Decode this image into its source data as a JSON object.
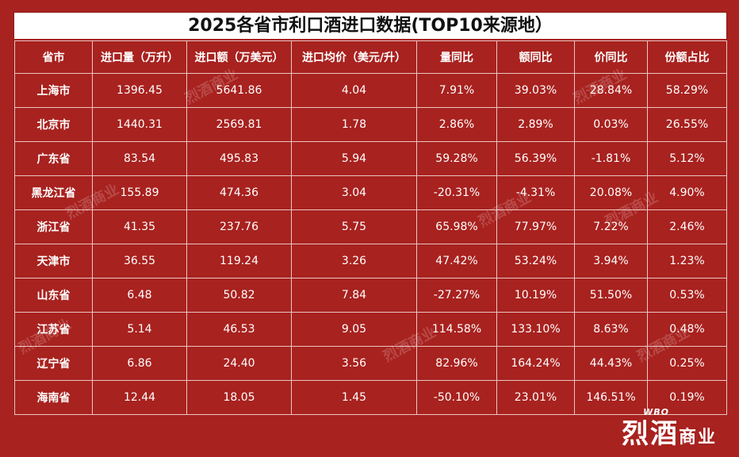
{
  "title": "2025各省市利口酒进口数据(TOP10来源地）",
  "headers": [
    "省市",
    "进口量（万升）",
    "进口额（万美元）",
    "进口均价（美元/升）",
    "量同比",
    "额同比",
    "价同比",
    "份额占比"
  ],
  "rows": [
    [
      "上海市",
      "1396.45",
      "5641.86",
      "4.04",
      "7.91%",
      "39.03%",
      "28.84%",
      "58.29%"
    ],
    [
      "北京市",
      "1440.31",
      "2569.81",
      "1.78",
      "2.86%",
      "2.89%",
      "0.03%",
      "26.55%"
    ],
    [
      "广东省",
      "83.54",
      "495.83",
      "5.94",
      "59.28%",
      "56.39%",
      "-1.81%",
      "5.12%"
    ],
    [
      "黑龙江省",
      "155.89",
      "474.36",
      "3.04",
      "-20.31%",
      "-4.31%",
      "20.08%",
      "4.90%"
    ],
    [
      "浙江省",
      "41.35",
      "237.76",
      "5.75",
      "65.98%",
      "77.97%",
      "7.22%",
      "2.46%"
    ],
    [
      "天津市",
      "36.55",
      "119.24",
      "3.26",
      "47.42%",
      "53.24%",
      "3.94%",
      "1.23%"
    ],
    [
      "山东省",
      "6.48",
      "50.82",
      "7.84",
      "-27.27%",
      "10.19%",
      "51.50%",
      "0.53%"
    ],
    [
      "江苏省",
      "5.14",
      "46.53",
      "9.05",
      "114.58%",
      "133.10%",
      "8.63%",
      "0.48%"
    ],
    [
      "辽宁省",
      "6.86",
      "24.40",
      "3.56",
      "82.96%",
      "164.24%",
      "44.43%",
      "0.25%"
    ],
    [
      "海南省",
      "12.44",
      "18.05",
      "1.45",
      "-50.10%",
      "23.01%",
      "146.51%",
      "0.19%"
    ]
  ],
  "watermark_text": "烈酒商业",
  "brand": {
    "main": "烈酒",
    "sub": "商业",
    "tag": "WBO"
  },
  "colors": {
    "background": "#a8221f",
    "text": "#ffffff",
    "title_bg": "#ffffff"
  }
}
